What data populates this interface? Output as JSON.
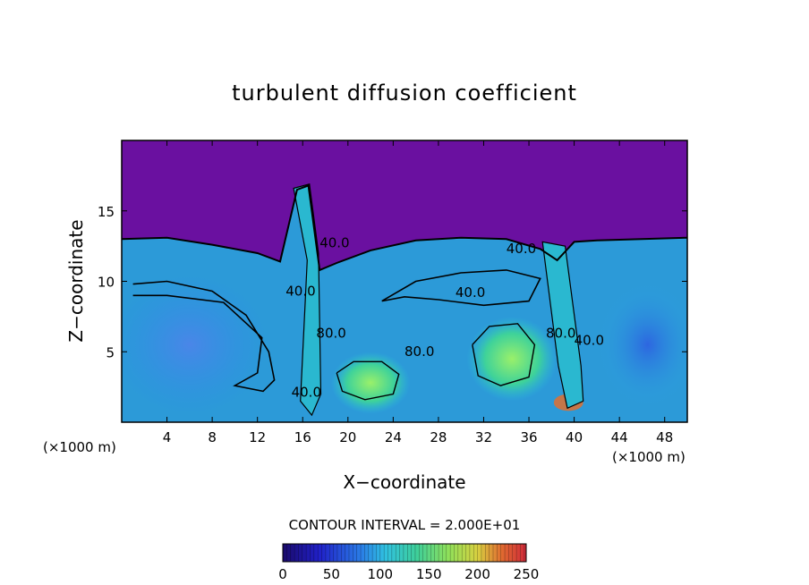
{
  "chart_data": {
    "type": "heatmap",
    "title": "turbulent diffusion coefficient",
    "xlabel": "X−coordinate",
    "ylabel": "Z−coordinate",
    "x_unit": "(×1000 m)",
    "x_unit_right": "(×1000 m)",
    "xlim": [
      0,
      50
    ],
    "ylim": [
      0,
      20
    ],
    "x_ticks": [
      4,
      8,
      12,
      16,
      20,
      24,
      28,
      32,
      36,
      40,
      44,
      48
    ],
    "y_ticks": [
      5,
      10,
      15
    ],
    "contour_interval_text": "CONTOUR INTERVAL = 2.000E+01",
    "colorbar": {
      "min": 0,
      "max": 250,
      "ticks": [
        0,
        50,
        100,
        150,
        200,
        250
      ]
    },
    "contour_labels": [
      {
        "text": "40.0",
        "x": 17.5,
        "z": 12.4
      },
      {
        "text": "40.0",
        "x": 14.5,
        "z": 9.0
      },
      {
        "text": "40.0",
        "x": 29.5,
        "z": 8.9
      },
      {
        "text": "40.0",
        "x": 34.0,
        "z": 12.0
      },
      {
        "text": "80.0",
        "x": 17.2,
        "z": 6.0
      },
      {
        "text": "80.0",
        "x": 25.0,
        "z": 4.7
      },
      {
        "text": "80.0",
        "x": 37.5,
        "z": 6.0
      },
      {
        "text": "40.0",
        "x": 40.0,
        "z": 5.5
      },
      {
        "text": "40.0",
        "x": 15.0,
        "z": 1.8
      }
    ]
  }
}
